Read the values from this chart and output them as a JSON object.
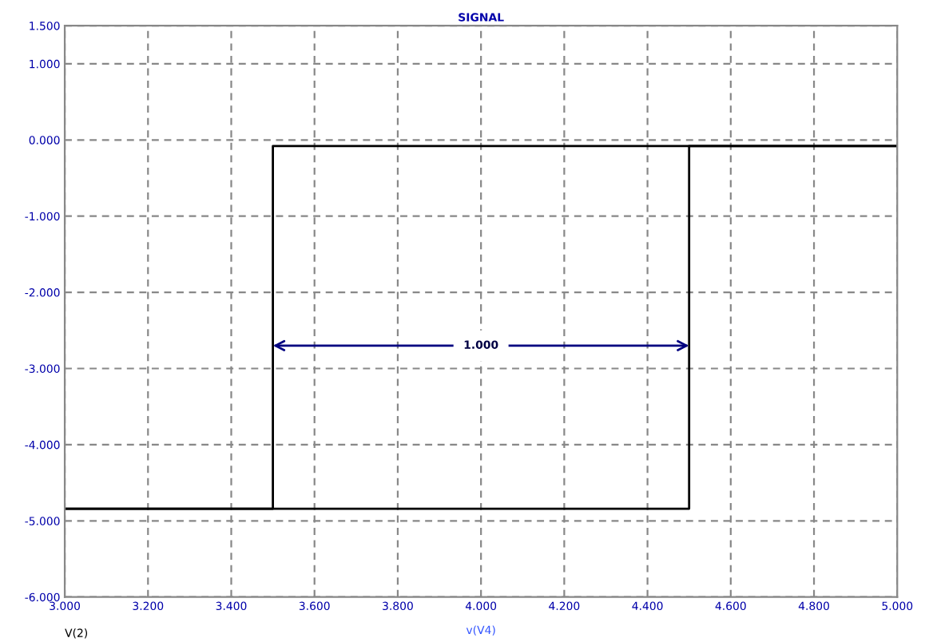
{
  "chart_data": {
    "type": "line",
    "title": "SIGNAL",
    "xlabel": "v(V4)",
    "x": [
      3.0,
      3.5,
      3.5,
      5.0
    ],
    "series": [
      {
        "color": "#000000",
        "values": [
          -4.84,
          -4.84,
          -0.08,
          -0.08
        ]
      },
      {
        "color": "#000000",
        "x": [
          3.0,
          4.5,
          4.5,
          5.0
        ],
        "values": [
          -4.84,
          -4.84,
          -0.08,
          -0.08
        ]
      }
    ],
    "annotations": [
      {
        "text": "1.000",
        "x": 4.0,
        "y": -2.7
      },
      "V(2)"
    ],
    "xlim": [
      3.0,
      5.0
    ],
    "xticks": [
      {
        "value": 3.0,
        "label": "3.000"
      },
      {
        "value": 3.2,
        "label": "3.200"
      },
      {
        "value": 3.4,
        "label": "3.400"
      },
      {
        "value": 3.6,
        "label": "3.600"
      },
      {
        "value": 3.8,
        "label": "3.800"
      },
      {
        "value": 4.0,
        "label": "4.000"
      },
      {
        "value": 4.2,
        "label": "4.200"
      },
      {
        "value": 4.4,
        "label": "4.400"
      },
      {
        "value": 4.6,
        "label": "4.600"
      },
      {
        "value": 4.8,
        "label": "4.800"
      },
      {
        "value": 5.0,
        "label": "5.000"
      }
    ],
    "ylim": [
      -6.0,
      1.5
    ],
    "yticks": [
      {
        "value": -6,
        "label": "-6.000"
      },
      {
        "value": -5,
        "label": "-5.000"
      },
      {
        "value": -4,
        "label": "-4.000"
      },
      {
        "value": -3,
        "label": "-3.000"
      },
      {
        "value": -2,
        "label": "-2.000"
      },
      {
        "value": -1,
        "label": "-1.000"
      },
      {
        "value": 0,
        "label": "0.000"
      },
      {
        "value": 1,
        "label": "1.000"
      },
      {
        "value": 1.5,
        "label": "1.500"
      }
    ],
    "grid": true,
    "legend": false
  }
}
